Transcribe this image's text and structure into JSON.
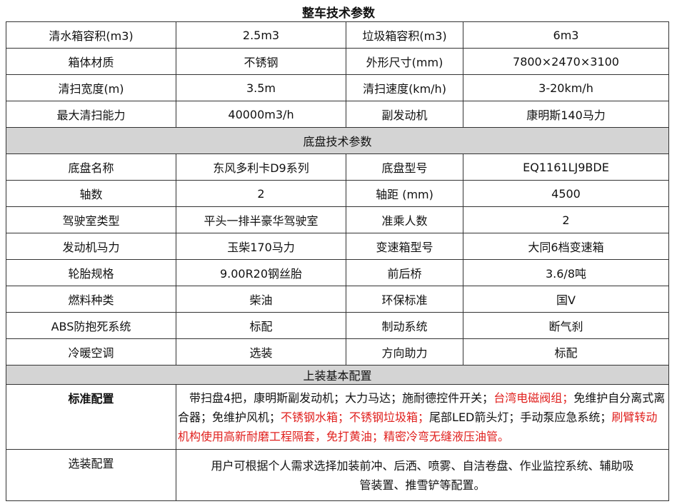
{
  "title": "整车技术参数",
  "vehicle_rows": [
    [
      "清水箱容积(m3)",
      "2.5m3",
      "垃圾箱容积(m3)",
      "6m3"
    ],
    [
      "箱体材质",
      "不锈钢",
      "外形尺寸(mm)",
      "7800×2470×3100"
    ],
    [
      "清扫宽度(m)",
      "3.5m",
      "清扫速度(km/h)",
      "3-20km/h"
    ],
    [
      "最大清扫能力",
      "40000m3/h",
      "副发动机",
      "康明斯140马力"
    ]
  ],
  "chassis_header": "底盘技术参数",
  "chassis_rows": [
    [
      "底盘名称",
      "东风多利卡D9系列",
      "底盘型号",
      "EQ1161LJ9BDE"
    ],
    [
      "轴数",
      "2",
      "轴距 (mm)",
      "4500"
    ],
    [
      "驾驶室类型",
      "平头一排半豪华驾驶室",
      "准乘人数",
      "2"
    ],
    [
      "发动机马力",
      "玉柴170马力",
      "变速箱型号",
      "大同6档变速箱"
    ],
    [
      "轮胎规格",
      "9.00R20钢丝胎",
      "前后桥",
      "3.6/8吨"
    ],
    [
      "燃料种类",
      "柴油",
      "环保标准",
      "国V"
    ],
    [
      "ABS防抱死系统",
      "标配",
      "制动系统",
      "断气刹"
    ],
    [
      "冷暖空调",
      "选装",
      "方向助力",
      "标配"
    ]
  ],
  "upper_header": "上装基本配置",
  "standard": {
    "label": "标准配置",
    "segments": [
      {
        "text": "　带扫盘4把，康明斯副发动机；大力马达；施耐德控件开关；",
        "red": false
      },
      {
        "text": "台湾电磁阀组；",
        "red": true
      },
      {
        "text": "免维护自分离式离合器；免维护风机；",
        "red": false
      },
      {
        "text": "不锈钢水箱；不锈钢垃圾箱；",
        "red": true
      },
      {
        "text": "尾部LED箭头灯；手动泵应急系统；",
        "red": false
      },
      {
        "text": "刷臂转动机构使用高新耐磨工程隔套，免打黄油；精密冷弯无缝液压油管。",
        "red": true
      }
    ]
  },
  "optional": {
    "label": "选装配置",
    "line1": "用户可根据个人需求选择加装前冲、后洒、喷雾、自洁卷盘、作业监控系统、辅助吸",
    "line2": "管装置、推雪铲等配置。"
  },
  "colors": {
    "highlight": "#e0201e",
    "section_bg": "#d4d4d4"
  }
}
